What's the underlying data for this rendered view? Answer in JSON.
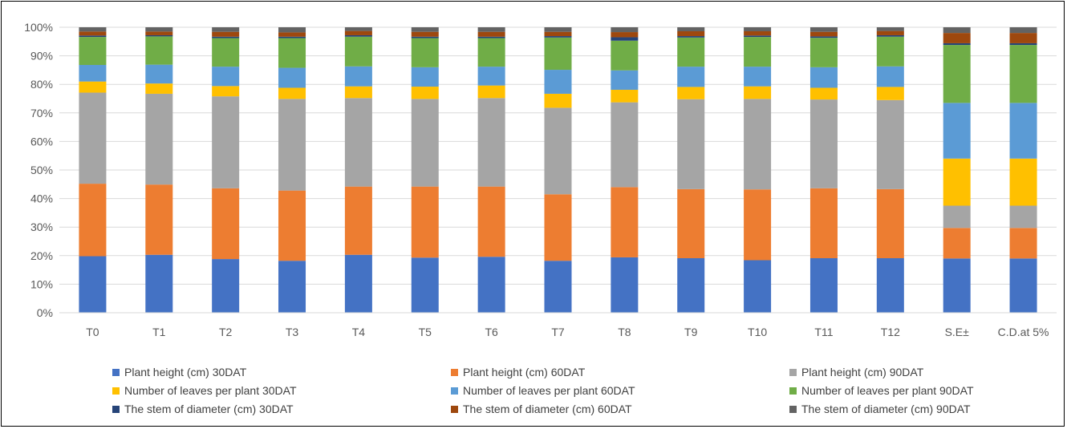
{
  "chart_data": {
    "type": "bar",
    "stacked": "percent",
    "categories": [
      "T0",
      "T1",
      "T2",
      "T3",
      "T4",
      "T5",
      "T6",
      "T7",
      "T8",
      "T9",
      "T10",
      "T11",
      "T12",
      "S.E±",
      "C.D.at 5%"
    ],
    "y_ticks": [
      "0%",
      "10%",
      "20%",
      "30%",
      "40%",
      "50%",
      "60%",
      "70%",
      "80%",
      "90%",
      "100%"
    ],
    "ylim": [
      0,
      100
    ],
    "grid": true,
    "legend_position": "bottom",
    "series": [
      {
        "name": "Plant height (cm) 30DAT",
        "color": "#4472C4",
        "values": [
          19.8,
          20.3,
          18.8,
          18.2,
          20.3,
          19.3,
          19.6,
          18.2,
          19.4,
          19.1,
          18.4,
          19.1,
          19.1,
          19.0,
          19.0
        ]
      },
      {
        "name": "Plant height (cm) 60DAT",
        "color": "#ED7D31",
        "values": [
          25.4,
          24.6,
          24.8,
          24.6,
          23.9,
          24.9,
          24.6,
          23.3,
          24.6,
          24.2,
          24.8,
          24.5,
          24.2,
          10.7,
          10.7
        ]
      },
      {
        "name": "Plant height (cm) 90DAT",
        "color": "#A5A5A5",
        "values": [
          31.9,
          31.8,
          32.2,
          32.1,
          31.0,
          30.7,
          31.0,
          30.3,
          29.7,
          31.5,
          31.7,
          31.1,
          31.2,
          7.8,
          7.8
        ]
      },
      {
        "name": "Number of leaves per plant 30DAT",
        "color": "#FFC000",
        "values": [
          3.9,
          3.6,
          3.6,
          3.9,
          4.1,
          4.3,
          4.4,
          4.9,
          4.4,
          4.3,
          4.4,
          4.1,
          4.6,
          16.5,
          16.5
        ]
      },
      {
        "name": "Number of leaves per plant 60DAT",
        "color": "#5B9BD5",
        "values": [
          5.8,
          6.6,
          6.8,
          7.0,
          7.0,
          6.8,
          6.6,
          8.4,
          6.8,
          7.1,
          6.9,
          7.2,
          7.2,
          19.5,
          19.5
        ]
      },
      {
        "name": "Number of leaves per plant 90DAT",
        "color": "#70AD47",
        "values": [
          9.8,
          9.9,
          10.0,
          10.4,
          10.4,
          10.2,
          10.0,
          11.3,
          10.4,
          10.2,
          10.4,
          10.3,
          10.4,
          20.3,
          20.3
        ]
      },
      {
        "name": "The stem of diameter (cm) 30DAT",
        "color": "#264478",
        "values": [
          0.5,
          0.4,
          0.5,
          0.5,
          0.5,
          0.5,
          0.5,
          0.5,
          1.2,
          0.5,
          0.5,
          0.5,
          0.5,
          0.6,
          0.6
        ]
      },
      {
        "name": "The stem of diameter (cm) 60DAT",
        "color": "#9E480E",
        "values": [
          1.4,
          1.3,
          1.7,
          1.5,
          1.5,
          1.7,
          1.7,
          1.5,
          1.8,
          1.7,
          1.5,
          1.6,
          1.5,
          3.6,
          3.6
        ]
      },
      {
        "name": "The stem of diameter (cm) 90DAT",
        "color": "#636363",
        "values": [
          1.5,
          1.5,
          1.6,
          1.8,
          1.3,
          1.6,
          1.6,
          1.6,
          1.7,
          1.4,
          1.4,
          1.6,
          1.3,
          2.0,
          2.0
        ]
      }
    ]
  }
}
